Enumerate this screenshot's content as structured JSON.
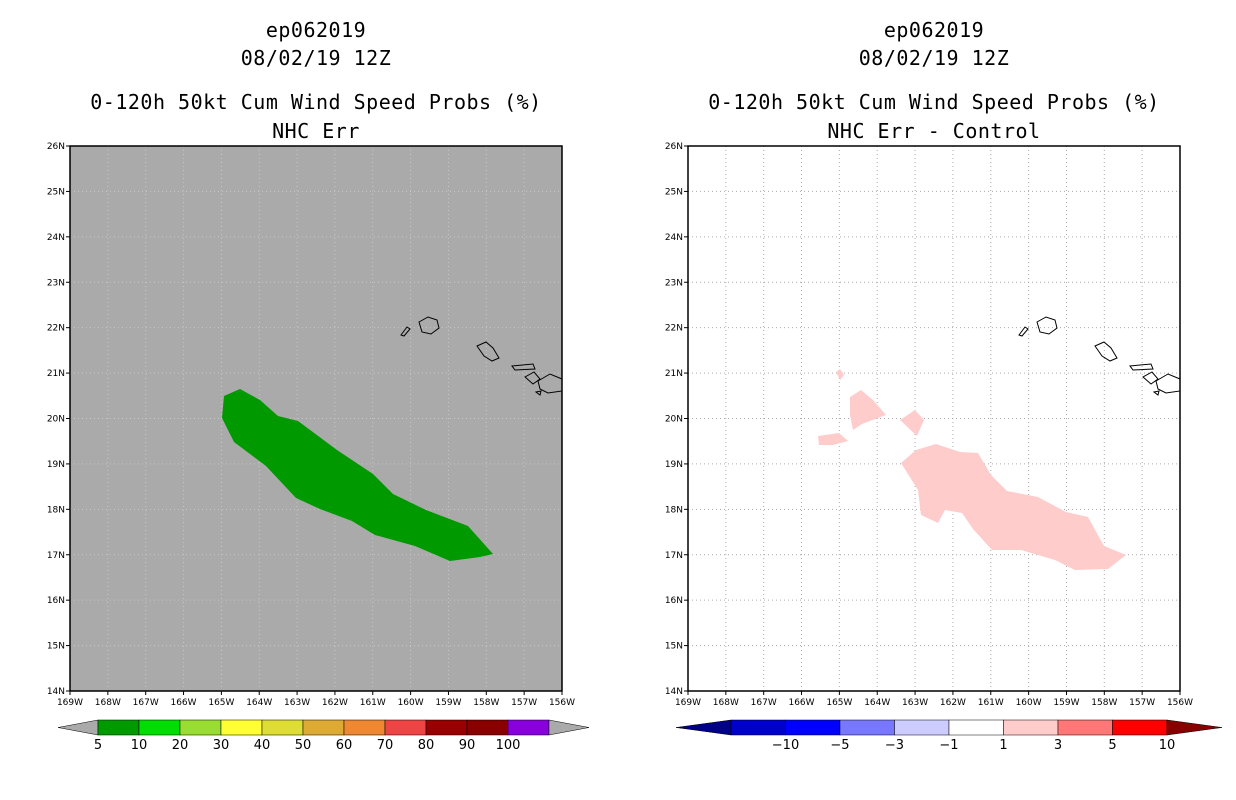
{
  "left_panel": {
    "storm_id": "ep062019",
    "datetime": "08/02/19 12Z",
    "product": "0-120h 50kt Cum Wind Speed Probs (%)",
    "subtitle": "NHC Err",
    "lat_labels": [
      "26N",
      "25N",
      "24N",
      "23N",
      "22N",
      "21N",
      "20N",
      "19N",
      "18N",
      "17N",
      "16N",
      "15N",
      "14N"
    ],
    "lon_labels": [
      "169W",
      "168W",
      "167W",
      "166W",
      "165W",
      "164W",
      "163W",
      "162W",
      "161W",
      "160W",
      "159W",
      "158W",
      "157W",
      "156W"
    ],
    "colorbar": {
      "labels": [
        "5",
        "10",
        "20",
        "30",
        "40",
        "50",
        "60",
        "70",
        "80",
        "90",
        "100"
      ],
      "colors": [
        "#009900",
        "#00dd00",
        "#99dd33",
        "#ffff33",
        "#dddd33",
        "#ddaa33",
        "#ee8833",
        "#ee4444",
        "#990000",
        "#880000",
        "#8800dd"
      ],
      "end_color": "#aaaaaa"
    },
    "background_color": "#aaaaaa",
    "fill_color": "#009900"
  },
  "right_panel": {
    "storm_id": "ep062019",
    "datetime": "08/02/19 12Z",
    "product": "0-120h 50kt Cum Wind Speed Probs (%)",
    "subtitle": "NHC Err - Control",
    "lat_labels": [
      "26N",
      "25N",
      "24N",
      "23N",
      "22N",
      "21N",
      "20N",
      "19N",
      "18N",
      "17N",
      "16N",
      "15N",
      "14N"
    ],
    "lon_labels": [
      "169W",
      "168W",
      "167W",
      "166W",
      "165W",
      "164W",
      "163W",
      "162W",
      "161W",
      "160W",
      "159W",
      "158W",
      "157W",
      "156W"
    ],
    "colorbar": {
      "labels": [
        "-10",
        "-5",
        "-3",
        "-1",
        "1",
        "3",
        "5",
        "10"
      ],
      "colors": [
        "#0000cc",
        "#0000ff",
        "#7777ff",
        "#ccccff",
        "#ffffff",
        "#ffcccc",
        "#ff7777",
        "#ff0000"
      ],
      "low_end_color": "#000088",
      "high_end_color": "#880000"
    },
    "background_color": "#ffffff",
    "fill_color": "#ffcccc"
  }
}
